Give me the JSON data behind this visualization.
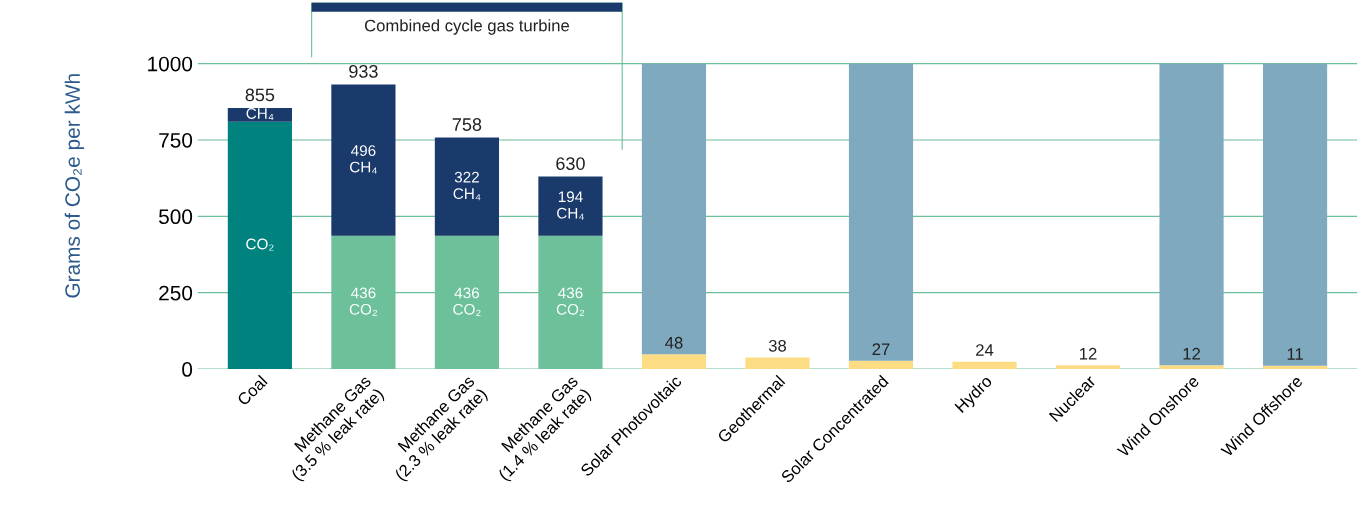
{
  "chart_data": {
    "type": "bar",
    "stacked": true,
    "ylabel": "Grams of CO₂e per kWh",
    "categories": [
      "Coal",
      "Methane Gas\n(3.5 % leak rate)",
      "Methane Gas\n(2.3 % leak rate)",
      "Methane Gas\n(1.4 % leak rate)",
      "Solar Photovoltaic",
      "Geothermal",
      "Solar Concentrated",
      "Hydro",
      "Nuclear",
      "Wind Onshore",
      "Wind Offshore"
    ],
    "series": [
      {
        "name": "CO₂",
        "colors": [
          "#00827f",
          "#6cc09a",
          "#6cc09a",
          "#6cc09a",
          null,
          null,
          null,
          null,
          null,
          null,
          null
        ],
        "values": [
          810,
          436,
          436,
          436,
          null,
          null,
          null,
          null,
          null,
          null,
          null
        ],
        "value_labels": [
          null,
          "436",
          "436",
          "436",
          null,
          null,
          null,
          null,
          null,
          null,
          null
        ]
      },
      {
        "name": "CH₄",
        "color": "#1a3a6b",
        "values": [
          45,
          496,
          322,
          194,
          null,
          null,
          null,
          null,
          null,
          null,
          null
        ],
        "value_labels": [
          null,
          "496",
          "322",
          "194",
          null,
          null,
          null,
          null,
          null,
          null,
          null
        ]
      },
      {
        "color": "#fddc84",
        "values": [
          null,
          null,
          null,
          null,
          48,
          38,
          27,
          24,
          12,
          12,
          11
        ],
        "value_labels": [
          null,
          null,
          null,
          null,
          "48",
          "38",
          "27",
          "24",
          "12",
          "12",
          "11"
        ]
      },
      {
        "color": "#7fa9bf",
        "values": [
          null,
          null,
          null,
          null,
          952,
          null,
          973,
          null,
          null,
          988,
          989
        ]
      }
    ],
    "totals": [
      "855",
      "933",
      "758",
      "630",
      null,
      null,
      null,
      null,
      null,
      null,
      null
    ],
    "annotations": [
      "Combined cycle gas turbine"
    ],
    "ylim": [
      0,
      1200
    ],
    "yticks": [
      0,
      250,
      500,
      750,
      1000
    ],
    "grid": "y"
  }
}
